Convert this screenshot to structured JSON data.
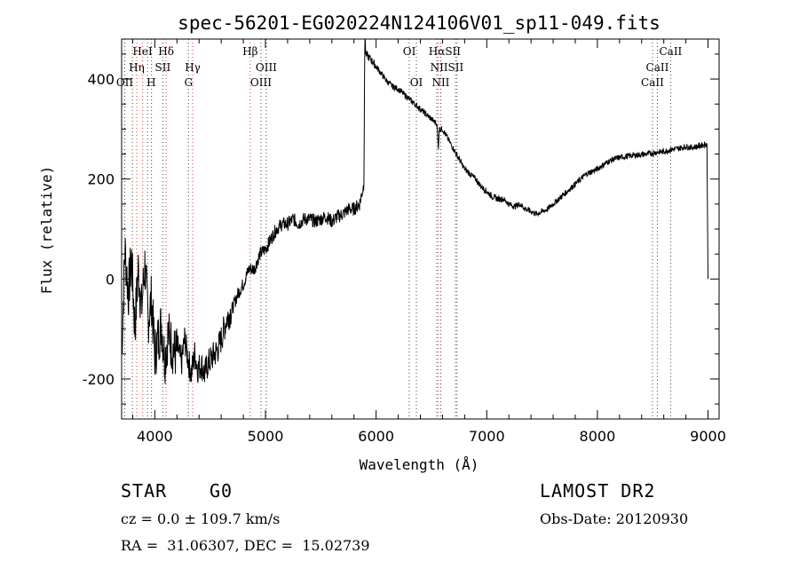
{
  "chart_data": {
    "type": "line",
    "title": "spec-56201-EG020224N124106V01_sp11-049.fits",
    "xlabel": "Wavelength (Å)",
    "ylabel": "Flux (relative)",
    "xlim": [
      3700,
      9100
    ],
    "ylim": [
      -280,
      480
    ],
    "xticks": [
      4000,
      5000,
      6000,
      7000,
      8000,
      9000
    ],
    "yticks": [
      -200,
      0,
      200,
      400
    ],
    "grid": false,
    "series": [
      {
        "x": [
          3700,
          3730,
          3760,
          3790,
          3820,
          3850,
          3880,
          3910,
          3940,
          3970,
          4000,
          4030,
          4060,
          4090,
          4120,
          4150,
          4180,
          4210,
          4240,
          4270,
          4300,
          4330,
          4360,
          4390,
          4420,
          4450,
          4480,
          4510,
          4540,
          4570,
          4600,
          4650,
          4700,
          4750,
          4800,
          4850,
          4900,
          4950,
          5000,
          5050,
          5100,
          5150,
          5200,
          5250,
          5300,
          5350,
          5400,
          5450,
          5500,
          5550,
          5600,
          5650,
          5700,
          5750,
          5800,
          5850,
          5890,
          5895,
          5900,
          5905,
          5950,
          6000,
          6050,
          6100,
          6150,
          6200,
          6250,
          6300,
          6350,
          6400,
          6450,
          6500,
          6550,
          6563,
          6570,
          6600,
          6650,
          6700,
          6750,
          6800,
          6850,
          6900,
          6950,
          7000,
          7050,
          7100,
          7150,
          7200,
          7250,
          7300,
          7350,
          7400,
          7450,
          7500,
          7550,
          7600,
          7650,
          7700,
          7750,
          7800,
          7850,
          7900,
          7950,
          8000,
          8050,
          8100,
          8150,
          8200,
          8250,
          8300,
          8350,
          8400,
          8450,
          8500,
          8550,
          8600,
          8650,
          8700,
          8750,
          8800,
          8850,
          8900,
          8950,
          8990,
          9000
        ],
        "y": [
          -150,
          60,
          -30,
          40,
          -100,
          20,
          -60,
          30,
          -80,
          -40,
          -150,
          -120,
          -90,
          -160,
          -110,
          -130,
          -150,
          -140,
          -170,
          -120,
          -160,
          -190,
          -150,
          -180,
          -170,
          -190,
          -170,
          -160,
          -150,
          -140,
          -120,
          -80,
          -60,
          -30,
          -10,
          20,
          20,
          50,
          60,
          80,
          100,
          110,
          110,
          120,
          110,
          120,
          120,
          115,
          120,
          125,
          115,
          125,
          130,
          140,
          140,
          150,
          190,
          400,
          520,
          450,
          440,
          425,
          410,
          395,
          385,
          380,
          370,
          360,
          350,
          340,
          330,
          320,
          310,
          260,
          300,
          300,
          280,
          260,
          240,
          220,
          210,
          200,
          185,
          175,
          165,
          160,
          160,
          150,
          145,
          150,
          140,
          135,
          130,
          135,
          140,
          150,
          160,
          170,
          180,
          190,
          200,
          210,
          215,
          220,
          228,
          235,
          240,
          243,
          245,
          247,
          248,
          249,
          250,
          252,
          254,
          255,
          258,
          260,
          262,
          265,
          263,
          265,
          268,
          270,
          0
        ],
        "style": "noisy"
      }
    ],
    "lines": {
      "red": [
        3836,
        3890,
        4102,
        4342,
        4862,
        6563
      ],
      "black": [
        3728,
        3798,
        3934,
        3970,
        4072,
        4304,
        4959,
        5007,
        6300,
        6364,
        6548,
        6584,
        6717,
        6731,
        8498,
        8542,
        8662
      ]
    },
    "labels": [
      {
        "text": "HeI",
        "x": 3889,
        "row": 0
      },
      {
        "text": "Hδ",
        "x": 4102,
        "row": 0
      },
      {
        "text": "Hβ",
        "x": 4862,
        "row": 0
      },
      {
        "text": "OI",
        "x": 6300,
        "row": 0
      },
      {
        "text": "HαSII",
        "x": 6620,
        "row": 0
      },
      {
        "text": "CaII",
        "x": 8662,
        "row": 0
      },
      {
        "text": "Hη",
        "x": 3836,
        "row": 1
      },
      {
        "text": "SII",
        "x": 4072,
        "row": 1
      },
      {
        "text": "Hγ",
        "x": 4342,
        "row": 1
      },
      {
        "text": "OIII",
        "x": 5007,
        "row": 1
      },
      {
        "text": "NIISII",
        "x": 6640,
        "row": 1
      },
      {
        "text": "CaII",
        "x": 8542,
        "row": 1
      },
      {
        "text": "OII",
        "x": 3728,
        "row": 2
      },
      {
        "text": "H",
        "x": 3968,
        "row": 2
      },
      {
        "text": "G",
        "x": 4305,
        "row": 2
      },
      {
        "text": "OIII",
        "x": 4959,
        "row": 2
      },
      {
        "text": "OI",
        "x": 6364,
        "row": 2
      },
      {
        "text": "NII",
        "x": 6584,
        "row": 2
      },
      {
        "text": "CaII",
        "x": 8498,
        "row": 2
      }
    ]
  },
  "info": {
    "class": "STAR",
    "subclass": "G0",
    "survey": "LAMOST DR2",
    "cz": "cz = 0.0 ± 109.7 km/s",
    "obs_date": "Obs-Date: 20120930",
    "coords": "RA =  31.06307, DEC =  15.02739"
  }
}
